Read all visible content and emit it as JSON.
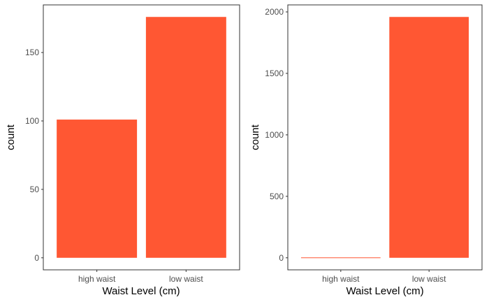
{
  "colors": {
    "bar": "#ff5733",
    "axis": "#333333",
    "tick_text": "#4d4d4d"
  },
  "chart_data": [
    {
      "type": "bar",
      "categories": [
        "high waist",
        "low waist"
      ],
      "values": [
        101,
        176
      ],
      "xlabel": "Waist Level (cm)",
      "ylabel": "count",
      "yticks": [
        0,
        50,
        100,
        150
      ],
      "ylim": [
        -8.8,
        184.8
      ],
      "grid": false,
      "legend": "none"
    },
    {
      "type": "bar",
      "categories": [
        "high waist",
        "low waist"
      ],
      "values": [
        3,
        1959
      ],
      "xlabel": "Waist Level (cm)",
      "ylabel": "count",
      "yticks": [
        0,
        500,
        1000,
        1500,
        2000
      ],
      "ylim": [
        -98,
        2057
      ],
      "grid": false,
      "legend": "none"
    }
  ]
}
